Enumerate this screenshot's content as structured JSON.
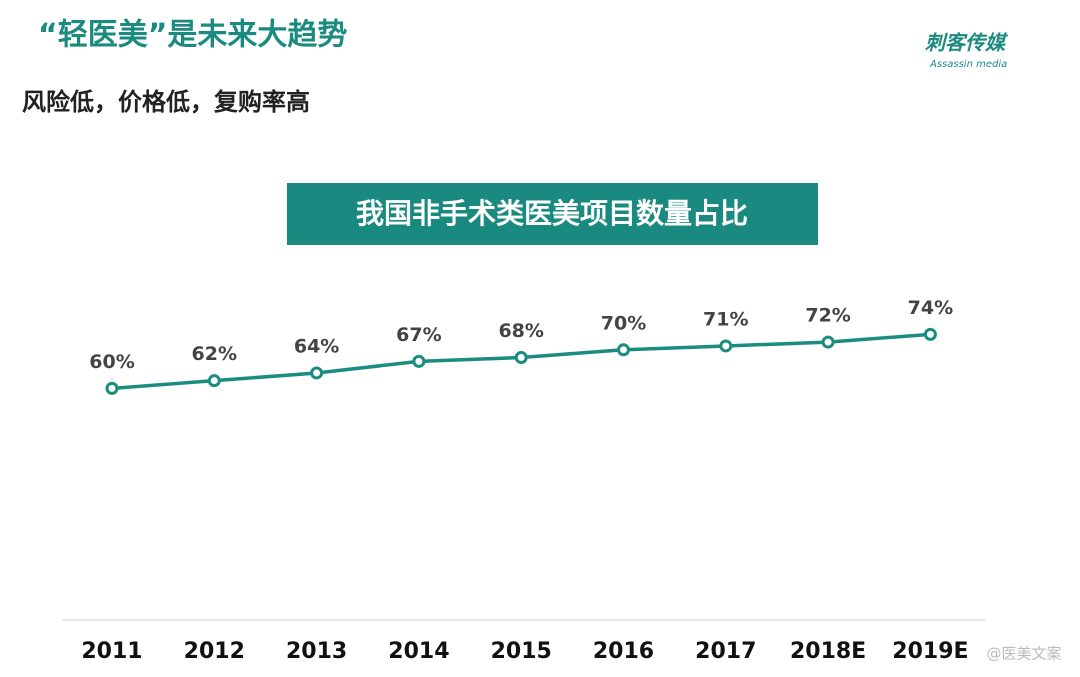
{
  "header": {
    "title": "“轻医美”是未来大趋势",
    "subtitle": "风险低，价格低，复购率高",
    "logo": "刺客传媒",
    "logo_sub": "Assassin media"
  },
  "chart_data": {
    "type": "line",
    "title": "我国非手术类医美项目数量占比",
    "categories": [
      "2011",
      "2012",
      "2013",
      "2014",
      "2015",
      "2016",
      "2017",
      "2018E",
      "2019E"
    ],
    "series": [
      {
        "color": "#1a8c80",
        "values": [
          60,
          62,
          64,
          67,
          68,
          70,
          71,
          72,
          74
        ],
        "value_labels": [
          "60%",
          "62%",
          "64%",
          "67%",
          "68%",
          "70%",
          "71%",
          "72%",
          "74%"
        ]
      }
    ]
  },
  "watermark": "@医美文案"
}
